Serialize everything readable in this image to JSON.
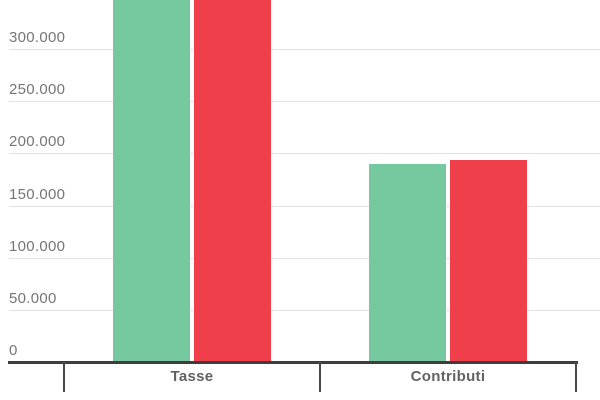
{
  "chart_data": {
    "type": "bar",
    "title": "",
    "xlabel": "",
    "ylabel": "",
    "categories": [
      "Tasse",
      "Contributi"
    ],
    "series": [
      {
        "name": "green-series",
        "color": "#76C89E",
        "values": [
          348000,
          191000
        ],
        "clipped_at_top": [
          true,
          false
        ]
      },
      {
        "name": "red-series",
        "color": "#EE3F4B",
        "values": [
          348000,
          195000
        ],
        "clipped_at_top": [
          true,
          false
        ]
      }
    ],
    "y_axis": {
      "tick_labels": [
        "300.000",
        "250.000",
        "200.000",
        "150.000",
        "100.000",
        "50.000",
        "0"
      ],
      "tick_values": [
        300000,
        250000,
        200000,
        150000,
        100000,
        50000,
        0
      ],
      "visible_max": 348000,
      "number_format": "thousands separated by dot (it-IT)"
    },
    "legend": "none",
    "grid": true,
    "note": "Both bars of the Tasse group extend beyond the top edge of the visible area (clipped)."
  },
  "colors": {
    "background": "#FFFFFF",
    "gridline": "#E1E1E1",
    "axis": "#3E3E3E",
    "y_tick_label": "#757575",
    "category_label": "#636363",
    "bar_green": "#76C89E",
    "bar_red": "#EE3F4B"
  }
}
